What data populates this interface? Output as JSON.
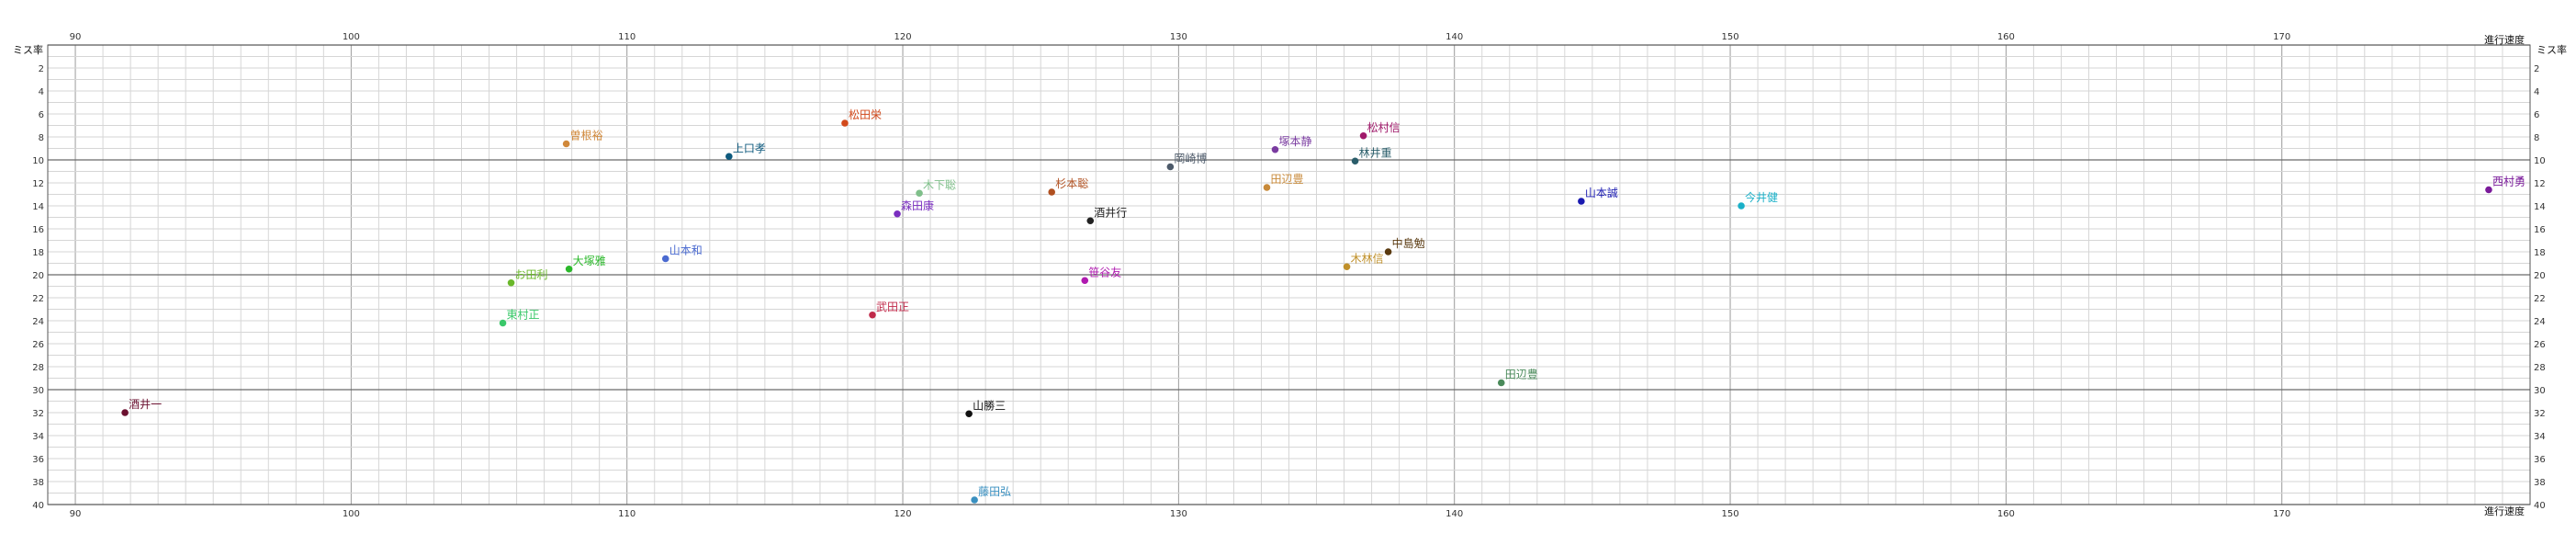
{
  "chart_data": {
    "type": "scatter",
    "title": "",
    "xlabel": "進行速度",
    "ylabel": "ミス率",
    "xlim": [
      89,
      179
    ],
    "ylim": [
      0,
      40
    ],
    "y_inverted": true,
    "grid": true,
    "x_major_ticks": [
      90,
      100,
      110,
      120,
      130,
      140,
      150,
      160,
      170
    ],
    "y_ticks": [
      2,
      4,
      6,
      8,
      10,
      12,
      14,
      16,
      18,
      20,
      22,
      24,
      26,
      28,
      30,
      32,
      34,
      36,
      38,
      40
    ],
    "points": [
      {
        "label": "酒井一",
        "x": 91.8,
        "y": 32.0,
        "color": "#6b1030"
      },
      {
        "label": "松田栄",
        "x": 117.9,
        "y": 6.8,
        "color": "#d2491b"
      },
      {
        "label": "上口孝",
        "x": 113.7,
        "y": 9.7,
        "color": "#0e5a7e"
      },
      {
        "label": "曽根裕",
        "x": 107.8,
        "y": 8.6,
        "color": "#d0883a"
      },
      {
        "label": "松村信",
        "x": 136.7,
        "y": 7.9,
        "color": "#a0186a"
      },
      {
        "label": "塚本静",
        "x": 133.5,
        "y": 9.1,
        "color": "#7a3ba0"
      },
      {
        "label": "林井重",
        "x": 136.4,
        "y": 10.1,
        "color": "#2a5d6a"
      },
      {
        "label": "岡崎博",
        "x": 129.7,
        "y": 10.6,
        "color": "#4d5a6a"
      },
      {
        "label": "田辺豊",
        "x": 133.2,
        "y": 12.4,
        "color": "#c88a3a"
      },
      {
        "label": "杉本聡",
        "x": 125.4,
        "y": 12.8,
        "color": "#b05020"
      },
      {
        "label": "木下聡",
        "x": 120.6,
        "y": 12.9,
        "color": "#7fbf8a"
      },
      {
        "label": "森田康",
        "x": 119.8,
        "y": 14.7,
        "color": "#7a2ec0"
      },
      {
        "label": "酒井行",
        "x": 126.8,
        "y": 15.3,
        "color": "#222222"
      },
      {
        "label": "山本誠",
        "x": 144.6,
        "y": 13.6,
        "color": "#1a1ab0"
      },
      {
        "label": "今井健",
        "x": 150.4,
        "y": 14.0,
        "color": "#1ab0c8"
      },
      {
        "label": "西村勇",
        "x": 177.5,
        "y": 12.6,
        "color": "#7a1a9a"
      },
      {
        "label": "中島勉",
        "x": 137.6,
        "y": 18.0,
        "color": "#5a3a10"
      },
      {
        "label": "木林信",
        "x": 136.1,
        "y": 19.3,
        "color": "#c0902a"
      },
      {
        "label": "山本和",
        "x": 111.4,
        "y": 18.6,
        "color": "#4a6ad0"
      },
      {
        "label": "大塚雅",
        "x": 107.9,
        "y": 19.5,
        "color": "#2ab82a"
      },
      {
        "label": "笹谷友",
        "x": 126.6,
        "y": 20.5,
        "color": "#b01ab0"
      },
      {
        "label": "お田利",
        "x": 105.8,
        "y": 20.7,
        "color": "#6ab82a"
      },
      {
        "label": "武田正",
        "x": 118.9,
        "y": 23.5,
        "color": "#c02a4a"
      },
      {
        "label": "東村正",
        "x": 105.5,
        "y": 24.2,
        "color": "#3ac86a"
      },
      {
        "label": "田辺豊",
        "x": 141.7,
        "y": 29.4,
        "color": "#4a8a5a"
      },
      {
        "label": "山勝三",
        "x": 122.4,
        "y": 32.1,
        "color": "#111111"
      },
      {
        "label": "藤田弘",
        "x": 122.6,
        "y": 39.6,
        "color": "#3a90c0"
      }
    ]
  }
}
